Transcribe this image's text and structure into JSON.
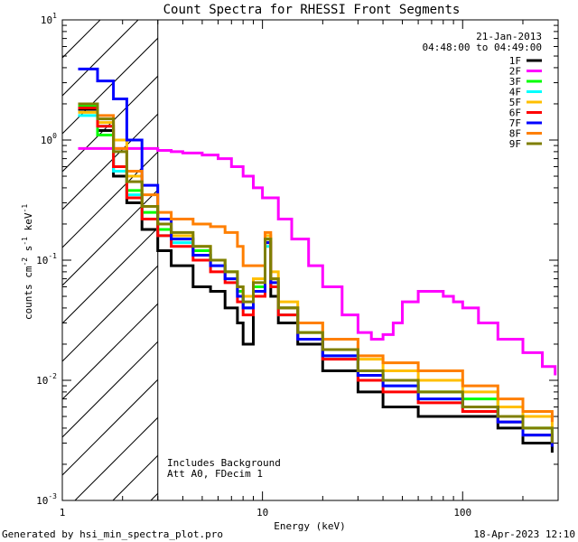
{
  "chart_data": {
    "type": "line",
    "title": "Count Spectra for RHESSI Front Segments",
    "xlabel": "Energy (keV)",
    "ylabel": "counts cm",
    "ylabel_parts": {
      "base": "counts cm",
      "exp1": "-2",
      "mid": " s",
      "exp2": "-1",
      "unit": " keV",
      "exp3": "-1"
    },
    "xscale": "log",
    "yscale": "log",
    "xlim": [
      1,
      300
    ],
    "ylim": [
      0.001,
      10
    ],
    "x_ticks": [
      {
        "value": 1,
        "label": "1"
      },
      {
        "value": 10,
        "label": "10"
      },
      {
        "value": 100,
        "label": "100"
      }
    ],
    "y_ticks": [
      {
        "value": 10,
        "base": "10",
        "exp": "1"
      },
      {
        "value": 1,
        "base": "10",
        "exp": "0"
      },
      {
        "value": 0.1,
        "base": "10",
        "exp": "-1"
      },
      {
        "value": 0.01,
        "base": "10",
        "exp": "-2"
      },
      {
        "value": 0.001,
        "base": "10",
        "exp": "-3"
      }
    ],
    "date": "21-Jan-2013",
    "time_range": "04:48:00 to 04:49:00",
    "hatched_region_max_keV": 3.0,
    "annotations": [
      "Includes Background",
      "Att A0, FDecim 1"
    ],
    "series": [
      {
        "name": "1F",
        "color": "#000000",
        "x": [
          1.2,
          1.5,
          1.8,
          2.1,
          2.5,
          3.0,
          3.5,
          4.5,
          5.5,
          6.5,
          7.5,
          8.0,
          9.0,
          10.3,
          11.0,
          12.0,
          15.0,
          20.0,
          30.0,
          40.0,
          60.0,
          100.0,
          150.0,
          200.0,
          280.0
        ],
        "values": [
          1.8,
          1.2,
          0.5,
          0.3,
          0.18,
          0.12,
          0.09,
          0.06,
          0.055,
          0.04,
          0.03,
          0.02,
          0.05,
          0.15,
          0.05,
          0.03,
          0.02,
          0.012,
          0.008,
          0.006,
          0.005,
          0.005,
          0.004,
          0.003,
          0.0025
        ]
      },
      {
        "name": "2F",
        "color": "#ff00ff",
        "x": [
          1.2,
          1.5,
          2.0,
          2.5,
          3.0,
          3.5,
          4.0,
          5.0,
          6.0,
          7.0,
          8.0,
          9.0,
          10.0,
          12.0,
          14.0,
          17.0,
          20.0,
          25.0,
          30.0,
          35.0,
          40.0,
          45.0,
          50.0,
          60.0,
          70.0,
          80.0,
          90.0,
          100.0,
          120.0,
          150.0,
          200.0,
          250.0,
          290.0
        ],
        "values": [
          0.85,
          0.85,
          0.85,
          0.85,
          0.82,
          0.8,
          0.78,
          0.75,
          0.7,
          0.6,
          0.5,
          0.4,
          0.33,
          0.22,
          0.15,
          0.09,
          0.06,
          0.035,
          0.025,
          0.022,
          0.024,
          0.03,
          0.045,
          0.055,
          0.055,
          0.05,
          0.045,
          0.04,
          0.03,
          0.022,
          0.017,
          0.013,
          0.011
        ]
      },
      {
        "name": "3F",
        "color": "#00ff00",
        "x": [
          1.2,
          1.5,
          1.8,
          2.1,
          2.5,
          3.0,
          3.5,
          4.5,
          5.5,
          6.5,
          7.5,
          8.0,
          9.0,
          10.3,
          11.0,
          12.0,
          15.0,
          20.0,
          30.0,
          40.0,
          60.0,
          100.0,
          150.0,
          200.0,
          280.0
        ],
        "values": [
          1.9,
          1.1,
          0.6,
          0.38,
          0.25,
          0.18,
          0.15,
          0.12,
          0.1,
          0.08,
          0.055,
          0.04,
          0.06,
          0.15,
          0.07,
          0.04,
          0.025,
          0.018,
          0.012,
          0.01,
          0.008,
          0.007,
          0.005,
          0.004,
          0.003
        ]
      },
      {
        "name": "4F",
        "color": "#00ffff",
        "x": [
          1.2,
          1.5,
          1.8,
          2.1,
          2.5,
          3.0,
          3.5,
          4.5,
          5.5,
          6.5,
          7.5,
          8.0,
          9.0,
          10.3,
          11.0,
          12.0,
          15.0,
          20.0,
          30.0,
          40.0,
          60.0,
          100.0,
          150.0,
          200.0,
          280.0
        ],
        "values": [
          1.6,
          1.3,
          0.55,
          0.35,
          0.22,
          0.16,
          0.14,
          0.11,
          0.09,
          0.07,
          0.05,
          0.04,
          0.055,
          0.13,
          0.06,
          0.035,
          0.022,
          0.016,
          0.011,
          0.009,
          0.007,
          0.006,
          0.0045,
          0.0035,
          0.0028
        ]
      },
      {
        "name": "5F",
        "color": "#ffbf00",
        "x": [
          1.2,
          1.5,
          1.8,
          2.1,
          2.5,
          3.0,
          3.5,
          4.5,
          5.5,
          6.5,
          7.5,
          8.0,
          9.0,
          10.3,
          11.0,
          12.0,
          15.0,
          20.0,
          30.0,
          40.0,
          60.0,
          100.0,
          150.0,
          200.0,
          280.0
        ],
        "values": [
          1.7,
          1.4,
          1.0,
          0.5,
          0.28,
          0.2,
          0.16,
          0.13,
          0.1,
          0.08,
          0.06,
          0.05,
          0.07,
          0.16,
          0.08,
          0.045,
          0.03,
          0.022,
          0.015,
          0.012,
          0.01,
          0.008,
          0.006,
          0.005,
          0.004
        ]
      },
      {
        "name": "6F",
        "color": "#ff0000",
        "x": [
          1.2,
          1.5,
          1.8,
          2.1,
          2.5,
          3.0,
          3.5,
          4.5,
          5.5,
          6.5,
          7.5,
          8.0,
          9.0,
          10.3,
          11.0,
          12.0,
          15.0,
          20.0,
          30.0,
          40.0,
          60.0,
          100.0,
          150.0,
          200.0,
          280.0
        ],
        "values": [
          1.85,
          1.3,
          0.6,
          0.33,
          0.22,
          0.16,
          0.13,
          0.1,
          0.08,
          0.065,
          0.045,
          0.035,
          0.05,
          0.14,
          0.06,
          0.035,
          0.022,
          0.015,
          0.01,
          0.008,
          0.0065,
          0.0055,
          0.0045,
          0.0035,
          0.0028
        ]
      },
      {
        "name": "7F",
        "color": "#0000ff",
        "x": [
          1.2,
          1.5,
          1.8,
          2.1,
          2.5,
          3.0,
          3.5,
          4.5,
          5.5,
          6.5,
          7.5,
          8.0,
          9.0,
          10.3,
          11.0,
          12.0,
          15.0,
          20.0,
          30.0,
          40.0,
          60.0,
          100.0,
          150.0,
          200.0,
          280.0
        ],
        "values": [
          3.9,
          3.1,
          2.2,
          1.0,
          0.42,
          0.22,
          0.15,
          0.11,
          0.09,
          0.07,
          0.05,
          0.04,
          0.055,
          0.14,
          0.065,
          0.04,
          0.022,
          0.016,
          0.011,
          0.009,
          0.007,
          0.006,
          0.0045,
          0.0035,
          0.0028
        ]
      },
      {
        "name": "8F",
        "color": "#ff7f00",
        "x": [
          1.2,
          1.5,
          1.8,
          2.1,
          2.5,
          3.0,
          3.5,
          4.5,
          5.5,
          6.5,
          7.5,
          8.0,
          9.0,
          10.3,
          11.0,
          12.0,
          15.0,
          20.0,
          30.0,
          40.0,
          60.0,
          100.0,
          150.0,
          200.0,
          280.0
        ],
        "values": [
          2.0,
          1.6,
          0.85,
          0.55,
          0.35,
          0.25,
          0.22,
          0.2,
          0.19,
          0.17,
          0.13,
          0.09,
          0.09,
          0.17,
          0.07,
          0.04,
          0.03,
          0.022,
          0.016,
          0.014,
          0.012,
          0.009,
          0.007,
          0.0055,
          0.0045
        ]
      },
      {
        "name": "9F",
        "color": "#7f7f00",
        "x": [
          1.2,
          1.5,
          1.8,
          2.1,
          2.5,
          3.0,
          3.5,
          4.5,
          5.5,
          6.5,
          7.5,
          8.0,
          9.0,
          10.3,
          11.0,
          12.0,
          15.0,
          20.0,
          30.0,
          40.0,
          60.0,
          100.0,
          150.0,
          200.0,
          280.0
        ],
        "values": [
          2.0,
          1.5,
          0.8,
          0.45,
          0.28,
          0.2,
          0.17,
          0.13,
          0.1,
          0.08,
          0.06,
          0.045,
          0.065,
          0.15,
          0.07,
          0.04,
          0.025,
          0.018,
          0.012,
          0.01,
          0.008,
          0.006,
          0.005,
          0.004,
          0.003
        ]
      }
    ]
  },
  "footer": {
    "generated_by": "Generated by hsi_min_spectra_plot.pro",
    "timestamp": "18-Apr-2023 12:10"
  }
}
